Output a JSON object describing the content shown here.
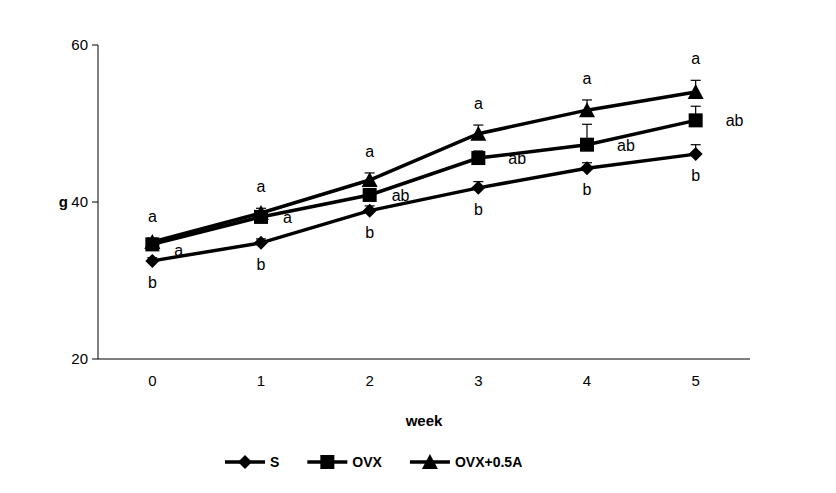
{
  "chart_data": {
    "type": "line",
    "categories": [
      "0",
      "1",
      "2",
      "3",
      "4",
      "5"
    ],
    "x_label": "week",
    "y_label": "g",
    "ylim": [
      20,
      60
    ],
    "yticks": [
      20,
      40,
      60
    ],
    "grid": false,
    "legend": "bottom",
    "series": [
      {
        "name": "S",
        "color": "#000000",
        "marker": "diamond",
        "line_style": "solid",
        "values": [
          32.5,
          34.8,
          38.9,
          41.8,
          44.3,
          46.1
        ],
        "errors": [
          0.4,
          0.5,
          0.6,
          0.8,
          0.7,
          1.2
        ],
        "letters": [
          "b",
          "b",
          "b",
          "b",
          "b",
          "b"
        ]
      },
      {
        "name": "OVX",
        "color": "#000000",
        "marker": "square",
        "line_style": "solid",
        "values": [
          34.6,
          38.1,
          40.9,
          45.6,
          47.3,
          50.4
        ],
        "errors": [
          0.5,
          0.6,
          0.8,
          0.9,
          2.6,
          1.8
        ],
        "letters": [
          "a",
          "a",
          "ab",
          "ab",
          "ab",
          "ab"
        ]
      },
      {
        "name": "OVX+0.5A",
        "color": "#000000",
        "marker": "triangle",
        "line_style": "solid",
        "values": [
          34.9,
          38.6,
          42.8,
          48.7,
          51.7,
          54.0
        ],
        "errors": [
          0.5,
          0.6,
          0.9,
          1.1,
          1.3,
          1.5
        ],
        "letters": [
          "a",
          "a",
          "a",
          "a",
          "a",
          "a"
        ]
      }
    ]
  }
}
